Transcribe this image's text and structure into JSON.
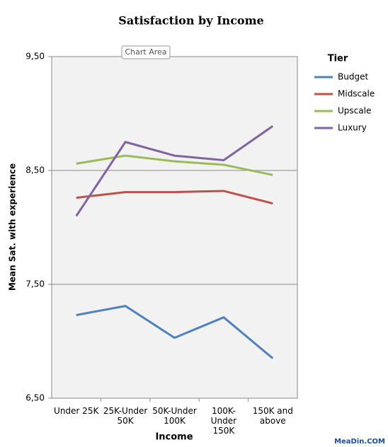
{
  "chart_data": {
    "type": "line",
    "title": "Satisfaction by Income",
    "x_label": "Income",
    "y_label": "Mean Sat. with experience",
    "legend_title": "Tier",
    "legend": "right",
    "tooltip": "Chart Area",
    "watermark": "MeaDin.COM",
    "grid": true,
    "categories": [
      "Under 25K",
      "25K-Under 50K",
      "50K-Under 100K",
      "100K-Under 150K",
      "150K and above"
    ],
    "ylim": [
      6.5,
      9.5
    ],
    "yticks": [
      {
        "value": 6.5,
        "label": "6,50"
      },
      {
        "value": 7.5,
        "label": "7,50"
      },
      {
        "value": 8.5,
        "label": "8,50"
      },
      {
        "value": 9.5,
        "label": "9,50"
      }
    ],
    "series": [
      {
        "name": "Budget",
        "color": "#4f81bd",
        "values": [
          7.23,
          7.31,
          7.03,
          7.21,
          6.85
        ]
      },
      {
        "name": "Midscale",
        "color": "#c0504d",
        "values": [
          8.26,
          8.31,
          8.31,
          8.32,
          8.21
        ]
      },
      {
        "name": "Upscale",
        "color": "#9bbb59",
        "values": [
          8.56,
          8.63,
          8.58,
          8.55,
          8.46
        ]
      },
      {
        "name": "Luxury",
        "color": "#8064a2",
        "values": [
          8.1,
          8.75,
          8.63,
          8.59,
          8.89
        ]
      }
    ]
  }
}
